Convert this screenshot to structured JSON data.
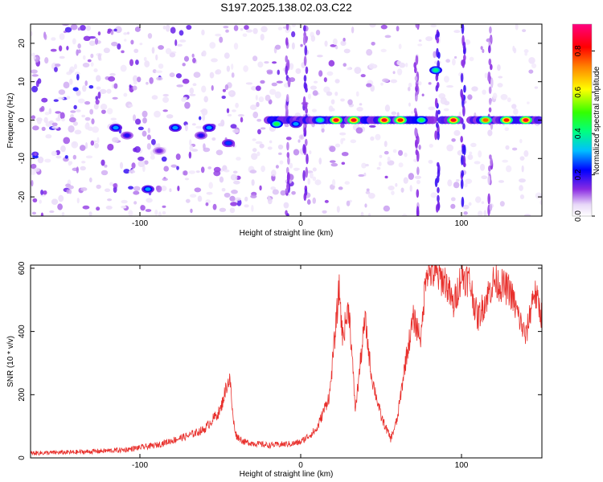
{
  "title": "S197.2025.138.02.03.C22",
  "chart_data": [
    {
      "type": "heatmap",
      "xlabel": "Height of straight line (km)",
      "ylabel": "Frequency (Hz)",
      "xlim": [
        -168,
        150
      ],
      "ylim": [
        -25,
        25
      ],
      "xticks": [
        -100,
        0,
        100
      ],
      "yticks": [
        -20,
        -10,
        0,
        10,
        20
      ],
      "colorbar": {
        "label": "Normalized spectral amplitude",
        "range": [
          0,
          0.93
        ],
        "ticks": [
          0.0,
          0.2,
          0.4,
          0.6,
          0.8
        ],
        "tick_labels": [
          "0.0",
          "0.2",
          "0.4",
          "0.6",
          "0.8"
        ]
      },
      "ridge": [
        {
          "x": -115,
          "y": -2,
          "v": 0.3
        },
        {
          "x": -108,
          "y": -4,
          "v": 0.2
        },
        {
          "x": -95,
          "y": -18,
          "v": 0.3
        },
        {
          "x": -88,
          "y": -8,
          "v": 0.15
        },
        {
          "x": -78,
          "y": -2,
          "v": 0.3
        },
        {
          "x": -62,
          "y": -4,
          "v": 0.2
        },
        {
          "x": -57,
          "y": -2,
          "v": 0.3
        },
        {
          "x": -45,
          "y": -6,
          "v": 0.25
        },
        {
          "x": -15,
          "y": -1,
          "v": 0.45
        },
        {
          "x": -3,
          "y": -1,
          "v": 0.3
        },
        {
          "x": 12,
          "y": 0,
          "v": 0.4
        },
        {
          "x": 22,
          "y": 0,
          "v": 0.85
        },
        {
          "x": 33,
          "y": 0,
          "v": 0.85
        },
        {
          "x": 52,
          "y": 0,
          "v": 0.85
        },
        {
          "x": 62,
          "y": 0,
          "v": 0.8
        },
        {
          "x": 75,
          "y": 0,
          "v": 0.45
        },
        {
          "x": 84,
          "y": 13,
          "v": 0.4
        },
        {
          "x": 95,
          "y": 0,
          "v": 0.85
        },
        {
          "x": 115,
          "y": 0,
          "v": 0.75
        },
        {
          "x": 128,
          "y": 0,
          "v": 0.8
        },
        {
          "x": 140,
          "y": 0,
          "v": 0.85
        }
      ]
    },
    {
      "type": "line",
      "xlabel": "Height of straight line (km)",
      "ylabel": "SNR (10 * v/v)",
      "xlim": [
        -168,
        150
      ],
      "ylim": [
        0,
        610
      ],
      "xticks": [
        -100,
        0,
        100
      ],
      "yticks": [
        0,
        200,
        400,
        600
      ],
      "color": "#e8302c",
      "series": [
        {
          "x": [
            -168,
            -140,
            -110,
            -90,
            -70,
            -60,
            -50,
            -46,
            -44,
            -42,
            -40,
            -35,
            -20,
            -5,
            0,
            10,
            18,
            24,
            26,
            30,
            34,
            40,
            44,
            50,
            56,
            60,
            65,
            70,
            75,
            78,
            83,
            90,
            95,
            100,
            105,
            110,
            120,
            130,
            140,
            145,
            150
          ],
          "y": [
            15,
            18,
            25,
            40,
            70,
            90,
            150,
            230,
            250,
            120,
            70,
            50,
            40,
            45,
            50,
            90,
            200,
            540,
            380,
            480,
            150,
            440,
            260,
            130,
            60,
            120,
            300,
            440,
            380,
            600,
            580,
            560,
            480,
            580,
            560,
            440,
            560,
            530,
            380,
            530,
            450
          ]
        }
      ]
    }
  ]
}
